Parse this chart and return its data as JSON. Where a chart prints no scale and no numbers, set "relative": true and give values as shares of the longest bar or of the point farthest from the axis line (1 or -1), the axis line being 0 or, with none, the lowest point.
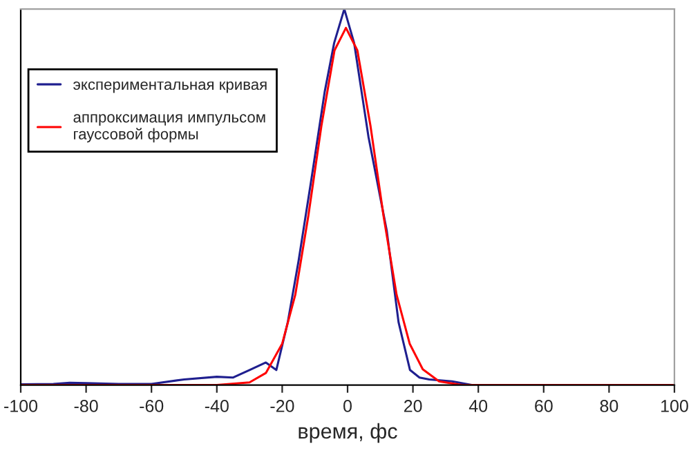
{
  "chart_data": {
    "type": "line",
    "xlabel": "время, фс",
    "relative": true,
    "xlim": [
      -100,
      100
    ],
    "xticks": [
      -100,
      -80,
      -60,
      -40,
      -20,
      0,
      20,
      40,
      60,
      80,
      100
    ],
    "tick_labels": "x",
    "grid": false,
    "legend": "top left",
    "marker": "none",
    "line_style": "solid",
    "series": [
      {
        "name": "экспериментальная кривая",
        "color": "#1f1f8f",
        "x": [
          -100,
          -90,
          -85,
          -80,
          -70,
          -60,
          -50,
          -40,
          -35,
          -30,
          -25,
          -21.8,
          -18.3,
          -15,
          -11.2,
          -7,
          -4.1,
          -1,
          2,
          6.4,
          12,
          15.6,
          19.1,
          22,
          25,
          32,
          38,
          50,
          100
        ],
        "values": [
          0.002,
          0.003,
          0.006,
          0.005,
          0.003,
          0.003,
          0.015,
          0.022,
          0.02,
          0.04,
          0.06,
          0.04,
          0.167,
          0.33,
          0.54,
          0.78,
          0.91,
          1.0,
          0.91,
          0.66,
          0.41,
          0.167,
          0.04,
          0.02,
          0.015,
          0.01,
          0.0,
          0.0,
          0.0
        ]
      },
      {
        "name": "аппроксимация импульсом гауссовой формы",
        "color": "#ff0000",
        "x": [
          -100,
          -40,
          -30,
          -25,
          -20,
          -16,
          -12,
          -8,
          -4,
          -0.5,
          3,
          7,
          11,
          15,
          19,
          23,
          28,
          35,
          50,
          100
        ],
        "values": [
          0.0,
          0.0,
          0.007,
          0.032,
          0.11,
          0.24,
          0.45,
          0.69,
          0.89,
          0.95,
          0.89,
          0.69,
          0.45,
          0.24,
          0.11,
          0.042,
          0.01,
          0.0,
          0.0,
          0.0
        ]
      }
    ]
  }
}
